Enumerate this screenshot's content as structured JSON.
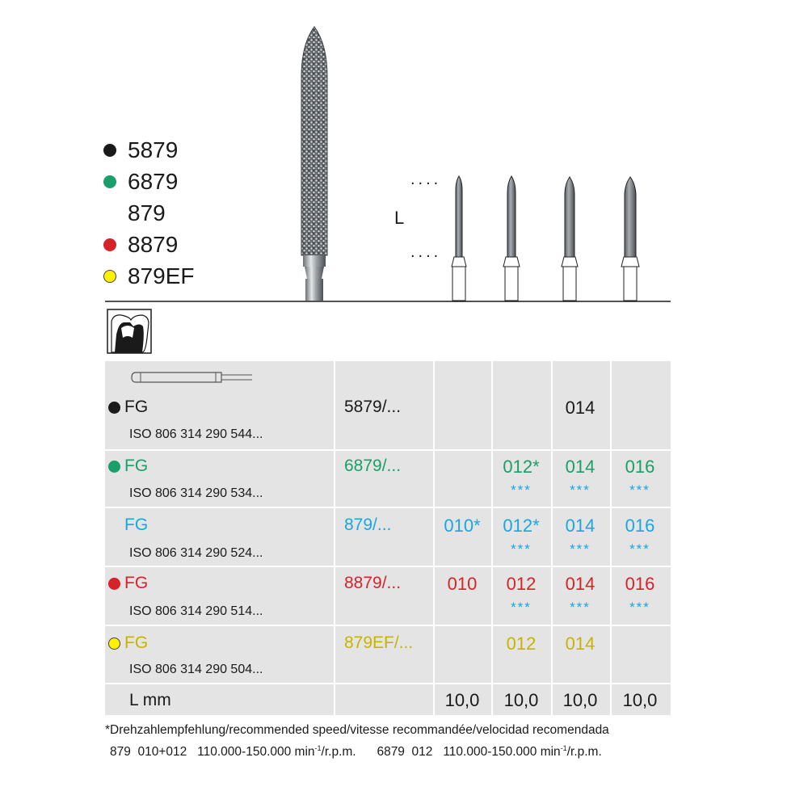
{
  "colors": {
    "black": "#1a1a1a",
    "green": "#1a9e6a",
    "blue": "#1aa6e0",
    "red": "#d6232a",
    "yellow": "#c8b400",
    "yellow_dot": "#fff200",
    "table_bg": "#e4e4e4"
  },
  "legend": [
    {
      "label": "5879",
      "color": "#1a1a1a",
      "dot": "filled"
    },
    {
      "label": "6879",
      "color": "#1a9e6a",
      "dot": "filled"
    },
    {
      "label": "879",
      "color": "#1a1a1a",
      "dot": "none"
    },
    {
      "label": "8879",
      "color": "#d6232a",
      "dot": "filled"
    },
    {
      "label": "879EF",
      "color": "#fff200",
      "dot": "outline"
    }
  ],
  "illustration": {
    "length_label": "L",
    "tooth_icon": "tooth-crown-icon",
    "shank_icon": "fg-shank-icon"
  },
  "table": {
    "rows": [
      {
        "shank": "FG",
        "iso": "ISO 806 314 290 544...",
        "ref": "5879/...",
        "color": "#1a1a1a",
        "sizes": [
          "",
          "",
          "014",
          ""
        ],
        "stars": [
          "",
          "",
          "",
          ""
        ]
      },
      {
        "shank": "FG",
        "iso": "ISO 806 314 290 534...",
        "ref": "6879/...",
        "color": "#1a9e6a",
        "sizes": [
          "",
          "012*",
          "014",
          "016"
        ],
        "stars": [
          "",
          "***",
          "***",
          "***"
        ]
      },
      {
        "shank": "FG",
        "iso": "ISO 806 314 290 524...",
        "ref": "879/...",
        "color": "#1aa6e0",
        "sizes": [
          "010*",
          "012*",
          "014",
          "016"
        ],
        "stars": [
          "",
          "***",
          "***",
          "***"
        ]
      },
      {
        "shank": "FG",
        "iso": "ISO 806 314 290 514...",
        "ref": "8879/...",
        "color": "#d6232a",
        "sizes": [
          "010",
          "012",
          "014",
          "016"
        ],
        "stars": [
          "",
          "***",
          "***",
          "***"
        ]
      },
      {
        "shank": "FG",
        "iso": "ISO 806 314 290 504...",
        "ref": "879EF/...",
        "color": "#c8b400",
        "sizes": [
          "",
          "012",
          "014",
          ""
        ],
        "stars": [
          "",
          "",
          "",
          ""
        ]
      }
    ],
    "length_row": {
      "label": "L mm",
      "values": [
        "10,0",
        "10,0",
        "10,0",
        "10,0"
      ]
    }
  },
  "footnote": {
    "line1": "*Drehzahlempfehlung/recommended speed/vitesse recommandée/velocidad recomendada",
    "line2_a": "879  010+012   110.000-150.000 min",
    "line2_b": "-1",
    "line2_c": "/r.p.m.      6879  012   110.000-150.000 min",
    "line2_d": "-1",
    "line2_e": "/r.p.m."
  }
}
